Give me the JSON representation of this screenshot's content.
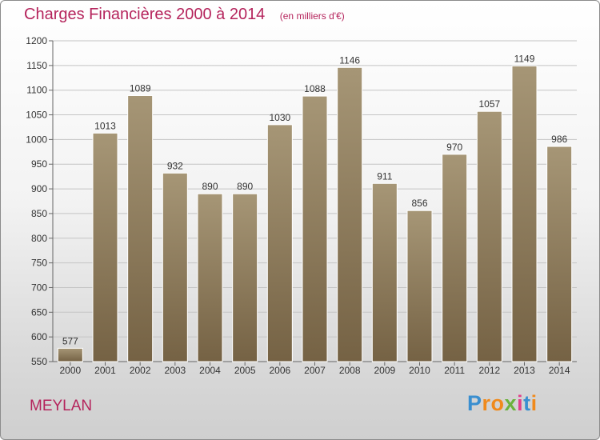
{
  "header": {
    "title": "Charges Financières 2000 à 2014",
    "subtitle": "(en milliers d'€)"
  },
  "footer": {
    "commune": "MEYLAN",
    "logo_text": "Proxiti",
    "logo_colors": [
      "#3a8fd0",
      "#f08a1c",
      "#f08a1c",
      "#6ab23c",
      "#e23f8a",
      "#3a8fd0",
      "#f08a1c"
    ]
  },
  "colors": {
    "title": "#b5245c",
    "bar_light": "#a69676",
    "bar_dark": "#756244"
  },
  "chart_data": {
    "type": "bar",
    "title": "Charges Financières 2000 à 2014",
    "subtitle": "(en milliers d'€)",
    "categories": [
      "2000",
      "2001",
      "2002",
      "2003",
      "2004",
      "2005",
      "2006",
      "2007",
      "2008",
      "2009",
      "2010",
      "2011",
      "2012",
      "2013",
      "2014"
    ],
    "values": [
      577,
      1013,
      1089,
      932,
      890,
      890,
      1030,
      1088,
      1146,
      911,
      856,
      970,
      1057,
      1149,
      986
    ],
    "ylim": [
      550,
      1200
    ],
    "yticks": [
      550,
      600,
      650,
      700,
      750,
      800,
      850,
      900,
      950,
      1000,
      1050,
      1100,
      1150,
      1200
    ],
    "grid": true,
    "legend": "none"
  }
}
